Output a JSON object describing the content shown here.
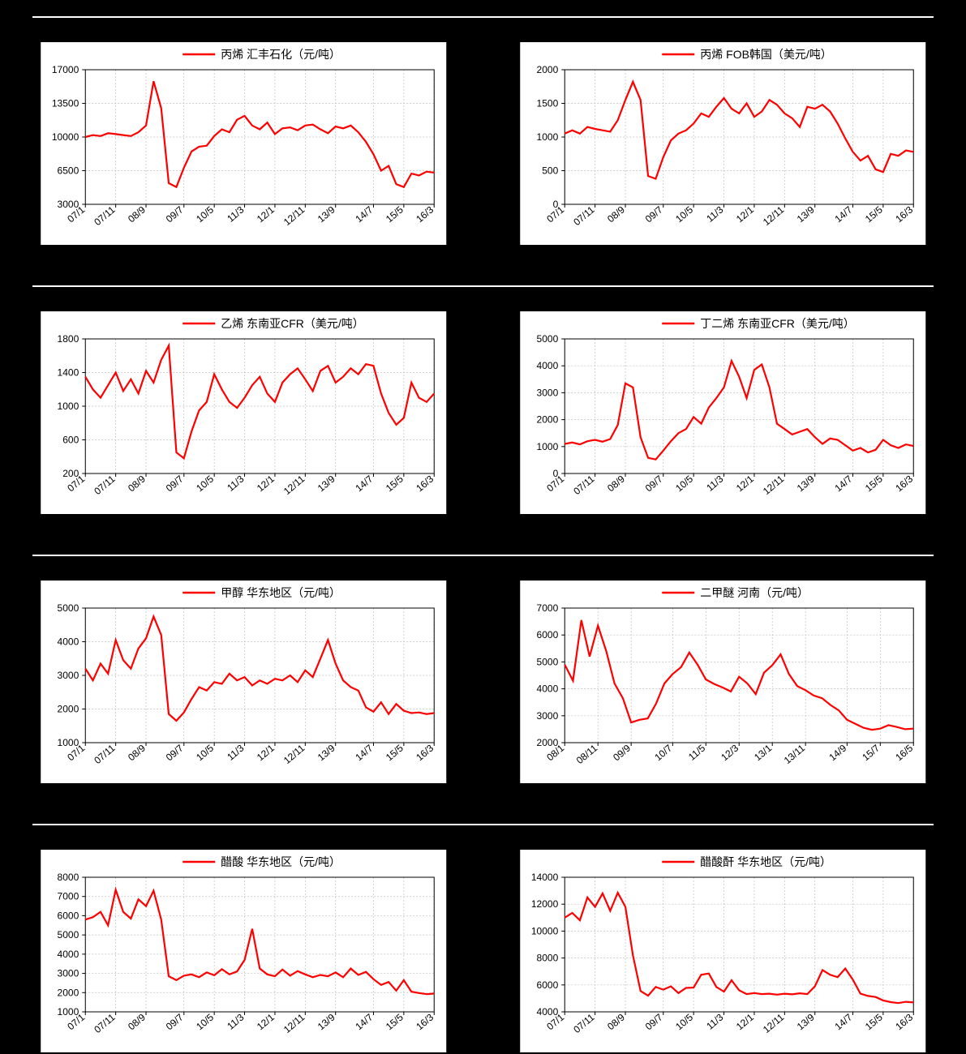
{
  "global": {
    "bg_color": "#000000",
    "panel_bg": "#ffffff",
    "divider_color": "#ffffff",
    "line_color": "#ff0000",
    "grid_color": "#bfbfbf",
    "axis_color": "#000000",
    "text_color": "#000000",
    "legend_fontsize": 14,
    "axis_fontsize": 12,
    "line_width": 2.2,
    "x_labels_common": [
      "07/1",
      "07/11",
      "08/9",
      "09/7",
      "10/5",
      "11/3",
      "12/1",
      "12/11",
      "13/9",
      "14/7",
      "15/5",
      "16/3"
    ],
    "x_labels_dme": [
      "08/1",
      "08/11",
      "09/9",
      "10/7",
      "11/5",
      "12/3",
      "13/1",
      "13/11",
      "14/9",
      "15/7",
      "16/5"
    ]
  },
  "charts": [
    {
      "id": "propylene-huifeng",
      "type": "line",
      "legend": "丙烯 汇丰石化（元/吨）",
      "ylim": [
        3000,
        17000
      ],
      "ystep": 3500,
      "x_set": "common",
      "yticks": [
        3000,
        6500,
        10000,
        13500,
        17000
      ],
      "values": [
        10000,
        10200,
        10100,
        10400,
        10300,
        10200,
        10100,
        10500,
        11200,
        15800,
        13000,
        5200,
        4800,
        6800,
        8500,
        9000,
        9100,
        10100,
        10800,
        10500,
        11800,
        12200,
        11200,
        10800,
        11500,
        10300,
        10900,
        11000,
        10700,
        11200,
        11300,
        10800,
        10400,
        11100,
        10900,
        11200,
        10500,
        9500,
        8200,
        6500,
        7000,
        5100,
        4800,
        6200,
        6000,
        6400,
        6300
      ]
    },
    {
      "id": "propylene-fob-korea",
      "type": "line",
      "legend": "丙烯 FOB韩国（美元/吨）",
      "ylim": [
        0,
        2000
      ],
      "ystep": 500,
      "x_set": "common",
      "yticks": [
        0,
        500,
        1000,
        1500,
        2000
      ],
      "values": [
        1050,
        1100,
        1050,
        1150,
        1120,
        1100,
        1080,
        1250,
        1550,
        1820,
        1550,
        420,
        380,
        700,
        950,
        1050,
        1100,
        1200,
        1350,
        1300,
        1450,
        1580,
        1420,
        1350,
        1500,
        1300,
        1380,
        1550,
        1480,
        1350,
        1280,
        1150,
        1450,
        1420,
        1480,
        1380,
        1200,
        980,
        780,
        650,
        720,
        520,
        480,
        750,
        720,
        800,
        780
      ]
    },
    {
      "id": "ethylene-sea-cfr",
      "type": "line",
      "legend": "乙烯 东南亚CFR（美元/吨）",
      "ylim": [
        200,
        1800
      ],
      "ystep": 400,
      "x_set": "common",
      "yticks": [
        200,
        600,
        1000,
        1400,
        1800
      ],
      "values": [
        1350,
        1200,
        1100,
        1250,
        1400,
        1180,
        1320,
        1150,
        1420,
        1280,
        1550,
        1720,
        450,
        380,
        700,
        950,
        1050,
        1380,
        1200,
        1050,
        980,
        1100,
        1250,
        1350,
        1150,
        1050,
        1280,
        1380,
        1450,
        1320,
        1180,
        1420,
        1480,
        1280,
        1350,
        1450,
        1380,
        1500,
        1480,
        1150,
        920,
        780,
        860,
        1280,
        1100,
        1050,
        1150
      ]
    },
    {
      "id": "butadiene-sea-cfr",
      "type": "line",
      "legend": "丁二烯 东南亚CFR（美元/吨）",
      "ylim": [
        0,
        5000
      ],
      "ystep": 1000,
      "x_set": "common",
      "yticks": [
        0,
        1000,
        2000,
        3000,
        4000,
        5000
      ],
      "values": [
        1100,
        1150,
        1080,
        1200,
        1250,
        1180,
        1280,
        1800,
        3350,
        3200,
        1350,
        580,
        520,
        850,
        1200,
        1500,
        1650,
        2100,
        1850,
        2450,
        2800,
        3200,
        4180,
        3600,
        2800,
        3850,
        4050,
        3200,
        1850,
        1650,
        1450,
        1550,
        1650,
        1350,
        1100,
        1300,
        1250,
        1050,
        850,
        950,
        780,
        880,
        1250,
        1050,
        950,
        1080,
        1020
      ]
    },
    {
      "id": "methanol-east",
      "type": "line",
      "legend": "甲醇 华东地区（元/吨）",
      "ylim": [
        1000,
        5000
      ],
      "ystep": 1000,
      "x_set": "common",
      "yticks": [
        1000,
        2000,
        3000,
        4000,
        5000
      ],
      "values": [
        3200,
        2850,
        3350,
        3050,
        4050,
        3450,
        3200,
        3800,
        4100,
        4750,
        4200,
        1850,
        1650,
        1900,
        2300,
        2650,
        2550,
        2800,
        2750,
        3050,
        2850,
        2950,
        2700,
        2850,
        2750,
        2900,
        2850,
        3000,
        2800,
        3150,
        2950,
        3500,
        4050,
        3350,
        2850,
        2650,
        2550,
        2050,
        1920,
        2200,
        1850,
        2150,
        1950,
        1880,
        1900,
        1850,
        1880
      ]
    },
    {
      "id": "dme-henan",
      "type": "line",
      "legend": "二甲醚 河南（元/吨）",
      "ylim": [
        2000,
        7000
      ],
      "ystep": 1000,
      "x_set": "dme",
      "yticks": [
        2000,
        3000,
        4000,
        5000,
        6000,
        7000
      ],
      "values": [
        4900,
        4300,
        6550,
        5200,
        6350,
        5400,
        4200,
        3650,
        2750,
        2850,
        2900,
        3450,
        4200,
        4550,
        4800,
        5350,
        4900,
        4350,
        4180,
        4050,
        3900,
        4450,
        4200,
        3800,
        4600,
        4880,
        5280,
        4550,
        4100,
        3950,
        3750,
        3650,
        3400,
        3200,
        2850,
        2700,
        2550,
        2480,
        2520,
        2650,
        2580,
        2500,
        2520
      ]
    },
    {
      "id": "acetic-acid-east",
      "type": "line",
      "legend": "醋酸 华东地区（元/吨）",
      "ylim": [
        1000,
        8000
      ],
      "ystep": 1000,
      "x_set": "common",
      "yticks": [
        1000,
        2000,
        3000,
        4000,
        5000,
        6000,
        7000,
        8000
      ],
      "values": [
        5800,
        5920,
        6200,
        5500,
        7350,
        6200,
        5850,
        6850,
        6500,
        7300,
        5800,
        2850,
        2650,
        2880,
        2950,
        2800,
        3050,
        2900,
        3220,
        2950,
        3100,
        3700,
        5320,
        3250,
        2950,
        2850,
        3200,
        2880,
        3120,
        2950,
        2800,
        2920,
        2850,
        3050,
        2800,
        3250,
        2920,
        3080,
        2700,
        2400,
        2550,
        2100,
        2650,
        2050,
        1980,
        1920,
        1950
      ]
    },
    {
      "id": "acetic-anhydride-east",
      "type": "line",
      "legend": "醋酸酐 华东地区（元/吨）",
      "ylim": [
        4000,
        14000
      ],
      "ystep": 2000,
      "x_set": "common",
      "yticks": [
        4000,
        6000,
        8000,
        10000,
        12000,
        14000
      ],
      "values": [
        11000,
        11350,
        10800,
        12500,
        11800,
        12800,
        11500,
        12850,
        11800,
        8200,
        5550,
        5200,
        5850,
        5650,
        5900,
        5400,
        5780,
        5800,
        6750,
        6850,
        5850,
        5500,
        6350,
        5600,
        5320,
        5400,
        5320,
        5350,
        5280,
        5350,
        5300,
        5380,
        5320,
        5900,
        7100,
        6750,
        6580,
        7220,
        6400,
        5350,
        5180,
        5100,
        4850,
        4720,
        4650,
        4750,
        4700
      ]
    }
  ]
}
